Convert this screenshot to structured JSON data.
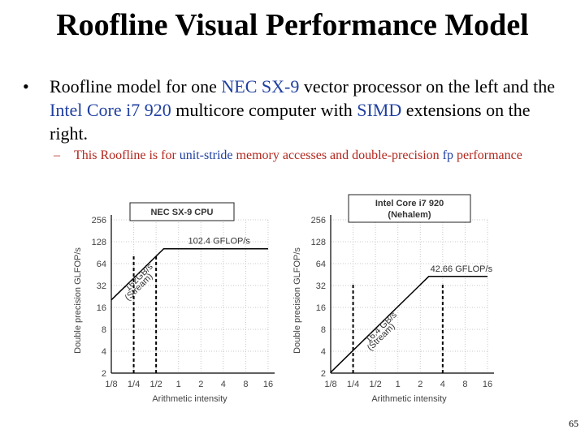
{
  "slide": {
    "title": "Roofline Visual Performance Model",
    "bullet": {
      "parts": [
        "Roofline model for one ",
        "NEC SX-9",
        " vector processor on the left and the ",
        "Intel Core i7 920",
        " multicore computer with ",
        "SIMD",
        " extensions on the right."
      ]
    },
    "sub_bullet": {
      "parts": [
        "This Roofline is for ",
        "unit-stride",
        " memory accesses and double-precision ",
        "fp",
        " performance"
      ]
    },
    "page_number": "65",
    "colors": {
      "highlight": "#1f3fa0",
      "sub_text": "#b3271e",
      "plot_line": "#000000"
    }
  },
  "chart_data": [
    {
      "type": "line",
      "title": "NEC SX-9 CPU",
      "xlabel": "Arithmetic intensity",
      "ylabel": "Double precision GLFOP/s",
      "x_scale": "log2",
      "y_scale": "log2",
      "xlim": [
        0.125,
        16
      ],
      "ylim": [
        2,
        256
      ],
      "x_ticks": [
        "1/8",
        "1/4",
        "1/2",
        "1",
        "2",
        "4",
        "8",
        "16"
      ],
      "y_ticks": [
        "2",
        "4",
        "8",
        "16",
        "32",
        "64",
        "128",
        "256"
      ],
      "roof": {
        "bandwidth_gbs": 162,
        "peak_gflops": 102.4,
        "x": [
          0.125,
          0.632,
          16
        ],
        "y": [
          20.25,
          102.4,
          102.4
        ]
      },
      "annotations": [
        "162GB/s",
        "(Stream)",
        "102.4 GFLOP/s"
      ],
      "vertical_dashed_x": [
        0.25,
        0.5
      ],
      "grid": true
    },
    {
      "type": "line",
      "title": "Intel Core i7 920",
      "subtitle": "(Nehalem)",
      "xlabel": "Arithmetic intensity",
      "ylabel": "Double precision GLFOP/s",
      "x_scale": "log2",
      "y_scale": "log2",
      "xlim": [
        0.125,
        16
      ],
      "ylim": [
        2,
        256
      ],
      "x_ticks": [
        "1/8",
        "1/4",
        "1/2",
        "1",
        "2",
        "4",
        "8",
        "16"
      ],
      "y_ticks": [
        "2",
        "4",
        "8",
        "16",
        "32",
        "64",
        "128",
        "256"
      ],
      "roof": {
        "bandwidth_gbs": 16.4,
        "peak_gflops": 42.66,
        "x": [
          0.125,
          2.6,
          16
        ],
        "y": [
          2.05,
          42.66,
          42.66
        ]
      },
      "annotations": [
        "16.4 GB/s",
        "(Stream)",
        "42.66 GFLOP/s"
      ],
      "vertical_dashed_x": [
        0.25,
        4
      ],
      "grid": true
    }
  ]
}
